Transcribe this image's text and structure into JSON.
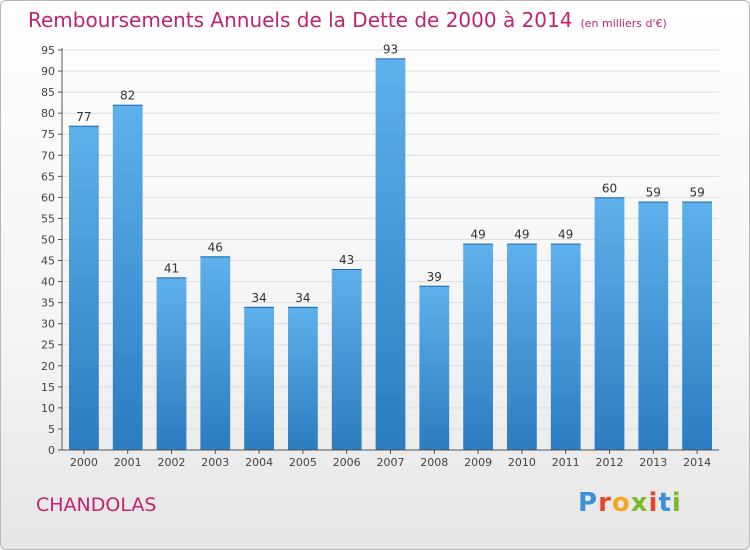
{
  "header": {
    "title": "Remboursements Annuels de la Dette de 2000 à 2014",
    "unit": "(en milliers d'€)"
  },
  "footer": {
    "commune": "CHANDOLAS",
    "logo_text": "Proxiti"
  },
  "colors": {
    "title": "#c0246e",
    "bar_top": "#5fb1ec",
    "bar_bottom": "#2b7cc0",
    "grid": "#dcdcdc"
  },
  "chart_data": {
    "type": "bar",
    "title": "Remboursements Annuels de la Dette de 2000 à 2014",
    "unit": "(en milliers d'€)",
    "categories": [
      "2000",
      "2001",
      "2002",
      "2003",
      "2004",
      "2005",
      "2006",
      "2007",
      "2008",
      "2009",
      "2010",
      "2011",
      "2012",
      "2013",
      "2014"
    ],
    "values": [
      77,
      82,
      41,
      46,
      34,
      34,
      43,
      93,
      39,
      49,
      49,
      49,
      60,
      59,
      59
    ],
    "xlabel": "",
    "ylabel": "",
    "ylim": [
      0,
      95
    ],
    "ytick_step": 5,
    "grid": true,
    "legend": "none"
  }
}
